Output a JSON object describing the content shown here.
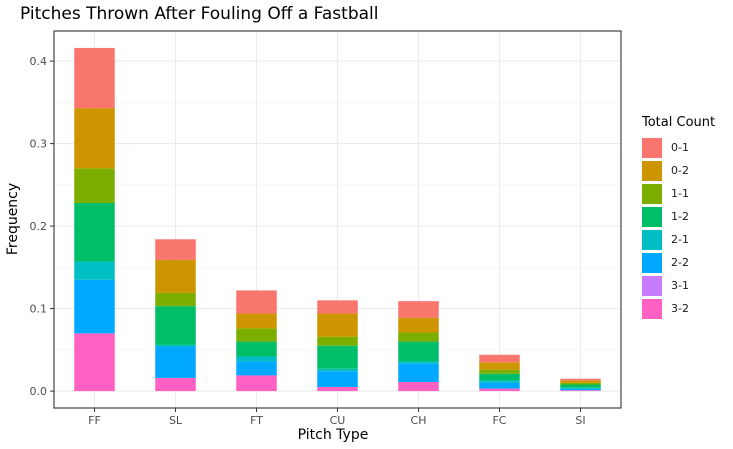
{
  "chart_data": {
    "type": "bar",
    "stacked": true,
    "title": "Pitches Thrown After Fouling Off a Fastball",
    "xlabel": "Pitch Type",
    "ylabel": "Frequency",
    "ylim": [
      0,
      0.42
    ],
    "yticks": [
      0.0,
      0.1,
      0.2,
      0.3,
      0.4
    ],
    "ytick_labels": [
      "0.0",
      "0.1",
      "0.2",
      "0.3",
      "0.4"
    ],
    "grid": true,
    "legend_position": "right",
    "legend_title": "Total Count",
    "categories": [
      "FF",
      "SL",
      "FT",
      "CU",
      "CH",
      "FC",
      "SI"
    ],
    "series": [
      {
        "name": "3-2",
        "color": "#FF61C3",
        "values": [
          0.07,
          0.016,
          0.019,
          0.005,
          0.011,
          0.003,
          0.001
        ]
      },
      {
        "name": "3-1",
        "color": "#C77CFF",
        "values": [
          0.0,
          0.0,
          0.0,
          0.0,
          0.0,
          0.0,
          0.0
        ]
      },
      {
        "name": "2-2",
        "color": "#00A9FF",
        "values": [
          0.065,
          0.038,
          0.017,
          0.019,
          0.022,
          0.007,
          0.002
        ]
      },
      {
        "name": "2-1",
        "color": "#00BFC4",
        "values": [
          0.022,
          0.002,
          0.006,
          0.003,
          0.003,
          0.003,
          0.001
        ]
      },
      {
        "name": "1-2",
        "color": "#00BE67",
        "values": [
          0.071,
          0.047,
          0.018,
          0.028,
          0.024,
          0.008,
          0.004
        ]
      },
      {
        "name": "1-1",
        "color": "#7CAE00",
        "values": [
          0.042,
          0.016,
          0.016,
          0.011,
          0.011,
          0.005,
          0.002
        ]
      },
      {
        "name": "0-2",
        "color": "#CD9600",
        "values": [
          0.073,
          0.04,
          0.018,
          0.028,
          0.018,
          0.009,
          0.003
        ]
      },
      {
        "name": "0-1",
        "color": "#F8766D",
        "values": [
          0.073,
          0.025,
          0.028,
          0.016,
          0.02,
          0.009,
          0.002
        ]
      }
    ],
    "legend_order": [
      "0-1",
      "0-2",
      "1-1",
      "1-2",
      "2-1",
      "2-2",
      "3-1",
      "3-2"
    ]
  }
}
